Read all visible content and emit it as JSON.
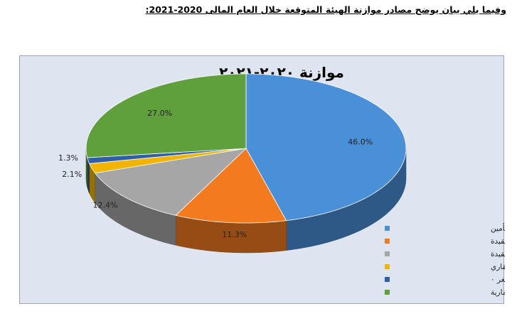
{
  "page_heading": "وفيما يلي بيان يوضح مصادر موازنة الهيئة المتوقعة خلال العام المالى 2020-2021:",
  "chart_data": {
    "type": "pie",
    "title": "موازنة ٢٠٢٠-٢٠٢١",
    "legend_position": "bottom-right",
    "slices": [
      {
        "label": "أنشطة قطاع التأمين",
        "value": 46.0,
        "display": "46.0%",
        "color": "#4a90d9"
      },
      {
        "label": "اجمالى إيرادات من شركات مقيدة",
        "value": 11.3,
        "display": "11.3%",
        "color": "#f47a20"
      },
      {
        "label": "اجمالى إيرادات من شركات غير مقيدة",
        "value": 12.4,
        "display": "12.4%",
        "color": "#a6a6a6"
      },
      {
        "label": "أنشطة قطاع التمويل العقاري",
        "value": 2.1,
        "display": "2.1%",
        "color": "#f2b400"
      },
      {
        "label": "التمويل متناهي الصغر",
        "value": 1.3,
        "display": "1.3%",
        "color": "#2e5fa8",
        "legend_suffix": "٠"
      },
      {
        "label": "إيرادات أخرى استثمارية",
        "value": 27.0,
        "display": "27.0%",
        "color": "#5fa03c"
      }
    ]
  }
}
